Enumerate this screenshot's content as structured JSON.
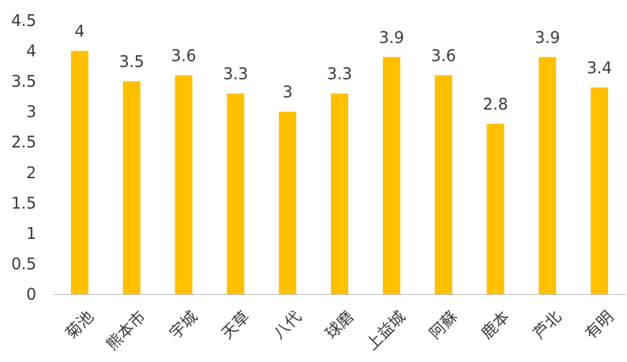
{
  "chart_data": {
    "type": "bar",
    "categories": [
      "菊池",
      "熊本市",
      "宇城",
      "天草",
      "八代",
      "球磨",
      "上益城",
      "阿蘇",
      "鹿本",
      "芦北",
      "有明"
    ],
    "values": [
      4,
      3.5,
      3.6,
      3.3,
      3,
      3.3,
      3.9,
      3.6,
      2.8,
      3.9,
      3.4
    ],
    "value_labels": [
      "4",
      "3.5",
      "3.6",
      "3.3",
      "3",
      "3.3",
      "3.9",
      "3.6",
      "2.8",
      "3.9",
      "3.4"
    ],
    "y_ticks": [
      "0",
      "0.5",
      "1",
      "1.5",
      "2",
      "2.5",
      "3",
      "3.5",
      "4",
      "4.5"
    ],
    "ylim": [
      0,
      4.5
    ],
    "grid": false,
    "legend": "none",
    "bar_color": "#FFC000",
    "title": "",
    "xlabel": "",
    "ylabel": ""
  }
}
